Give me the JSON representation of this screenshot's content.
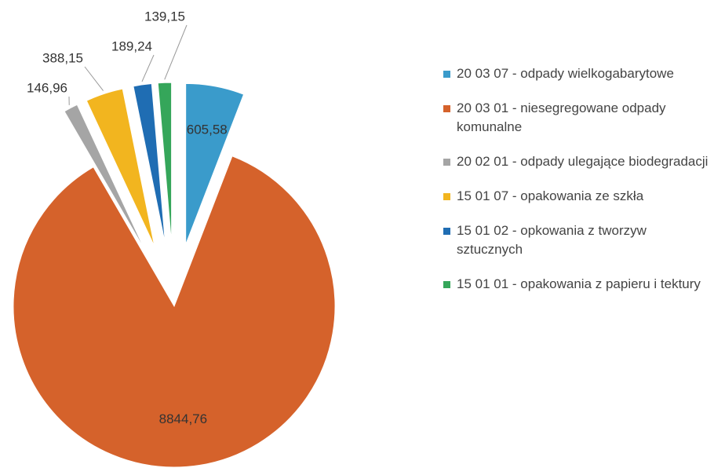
{
  "chart_data": {
    "type": "pie",
    "categories": [
      "20 03 07 - odpady wielkogabarytowe",
      "20 03 01 - niesegregowane odpady komunalne",
      "20 02 01 - odpady ulegające biodegradacji",
      "15 01 07 - opakowania ze szkła",
      "15 01 02 - opkowania z tworzyw sztucznych",
      "15 01 01 - opakowania z papieru i tektury"
    ],
    "values": [
      605.58,
      8844.76,
      146.96,
      388.15,
      189.24,
      139.15
    ],
    "value_labels": [
      "605,58",
      "8844,76",
      "146,96",
      "388,15",
      "189,24",
      "139,15"
    ],
    "colors": [
      "#3a9bcb",
      "#d5622b",
      "#a5a5a5",
      "#f2b51f",
      "#1f6db3",
      "#35a65a"
    ],
    "legend": "right"
  }
}
